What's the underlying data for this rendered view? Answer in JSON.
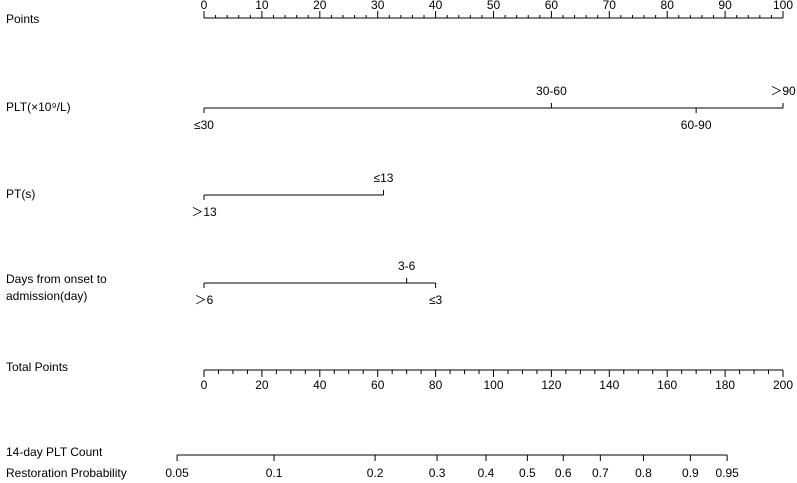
{
  "chart_data": {
    "type": "nomogram",
    "points_axis": {
      "label": "Points",
      "lim": [
        0,
        100
      ],
      "ticks": [
        0,
        10,
        20,
        30,
        40,
        50,
        60,
        70,
        80,
        90,
        100
      ],
      "minor_ticks": [
        2,
        4,
        6,
        8,
        12,
        14,
        16,
        18,
        22,
        24,
        26,
        28,
        32,
        34,
        36,
        38,
        42,
        44,
        46,
        48,
        52,
        54,
        56,
        58,
        62,
        64,
        66,
        68,
        72,
        74,
        76,
        78,
        82,
        84,
        86,
        88,
        92,
        94,
        96,
        98
      ]
    },
    "variables": [
      {
        "name": "PLT(×10⁹/L)",
        "levels": [
          {
            "label": "≤30",
            "points": 0
          },
          {
            "label": "30-60",
            "points": 60
          },
          {
            "label": "60-90",
            "points": 85
          },
          {
            "label": "＞90",
            "points": 100
          }
        ]
      },
      {
        "name": "PT(s)",
        "levels": [
          {
            "label": "＞13",
            "points": 0
          },
          {
            "label": "≤13",
            "points": 31
          }
        ]
      },
      {
        "name": [
          "Days from onset to",
          "admission(day)"
        ],
        "levels": [
          {
            "label": "＞6",
            "points": 0
          },
          {
            "label": "3-6",
            "points": 35
          },
          {
            "label": "≤3",
            "points": 40
          }
        ]
      }
    ],
    "total_axis": {
      "label": "Total Points",
      "lim": [
        0,
        200
      ],
      "ticks": [
        0,
        20,
        40,
        60,
        80,
        100,
        120,
        140,
        160,
        180,
        200
      ],
      "minor_ticks": [
        5,
        10,
        15,
        25,
        30,
        35,
        45,
        50,
        55,
        65,
        70,
        75,
        85,
        90,
        95,
        105,
        110,
        115,
        125,
        130,
        135,
        145,
        150,
        155,
        165,
        170,
        175,
        185,
        190,
        195
      ]
    },
    "probability_axis": {
      "label": [
        "14-day PLT Count",
        "Restoration Probability"
      ],
      "ticks": [
        {
          "prob": 0.05,
          "points": -9.3
        },
        {
          "prob": 0.1,
          "points": 24.2
        },
        {
          "prob": 0.2,
          "points": 59.1
        },
        {
          "prob": 0.3,
          "points": 80.5
        },
        {
          "prob": 0.4,
          "points": 97.4
        },
        {
          "prob": 0.5,
          "points": 111.7
        },
        {
          "prob": 0.6,
          "points": 124.1
        },
        {
          "prob": 0.7,
          "points": 136.9
        },
        {
          "prob": 0.8,
          "points": 151.8
        },
        {
          "prob": 0.9,
          "points": 168.0
        },
        {
          "prob": 0.95,
          "points": 180.7
        }
      ]
    }
  }
}
